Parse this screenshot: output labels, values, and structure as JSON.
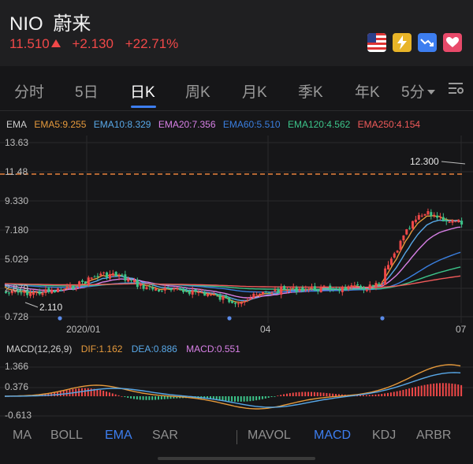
{
  "header": {
    "ticker": "NIO",
    "name": "蔚来",
    "price": "11.510",
    "change": "+2.130",
    "change_pct": "+22.71%",
    "up_color": "#f04848",
    "icons": [
      "us-flag-icon",
      "lightning-icon",
      "trend-down-icon",
      "heart-icon"
    ]
  },
  "tabs": [
    {
      "label": "分时",
      "active": false
    },
    {
      "label": "5日",
      "active": false
    },
    {
      "label": "日K",
      "active": true
    },
    {
      "label": "周K",
      "active": false
    },
    {
      "label": "月K",
      "active": false
    },
    {
      "label": "季K",
      "active": false
    },
    {
      "label": "年K",
      "active": false
    },
    {
      "label": "5分",
      "active": false
    }
  ],
  "ema_legend": {
    "title": "EMA",
    "items": [
      {
        "label": "EMA5:9.255",
        "color": "#e69a3c"
      },
      {
        "label": "EMA10:8.329",
        "color": "#58a8e8"
      },
      {
        "label": "EMA20:7.356",
        "color": "#d880e6"
      },
      {
        "label": "EMA60:5.510",
        "color": "#3a7fe0"
      },
      {
        "label": "EMA120:4.562",
        "color": "#3cc48a"
      },
      {
        "label": "EMA250:4.154",
        "color": "#f05a5a"
      }
    ]
  },
  "price_axis": {
    "labels": [
      "13.63",
      "11.48",
      "9.330",
      "7.180",
      "5.029",
      "2.879",
      "0.728"
    ],
    "current_marker": "12.300",
    "low_marker": "2.110"
  },
  "date_axis": {
    "labels": [
      "2020/01",
      "04",
      "07"
    ]
  },
  "macd_legend": {
    "title": "MACD(12,26,9)",
    "dif": "DIF:1.162",
    "dea": "DEA:0.886",
    "macd": "MACD:0.551",
    "dif_color": "#e69a3c",
    "dea_color": "#58a8e8",
    "macd_color": "#d880e6"
  },
  "macd_axis": {
    "labels": [
      "1.366",
      "0.376",
      "-0.613"
    ]
  },
  "indicators_left": [
    {
      "label": "MA",
      "active": false
    },
    {
      "label": "BOLL",
      "active": false
    },
    {
      "label": "EMA",
      "active": true
    },
    {
      "label": "SAR",
      "active": false
    }
  ],
  "indicators_right": [
    {
      "label": "MAVOL",
      "active": false
    },
    {
      "label": "MACD",
      "active": true
    },
    {
      "label": "KDJ",
      "active": false
    },
    {
      "label": "ARBR",
      "active": false
    }
  ]
}
